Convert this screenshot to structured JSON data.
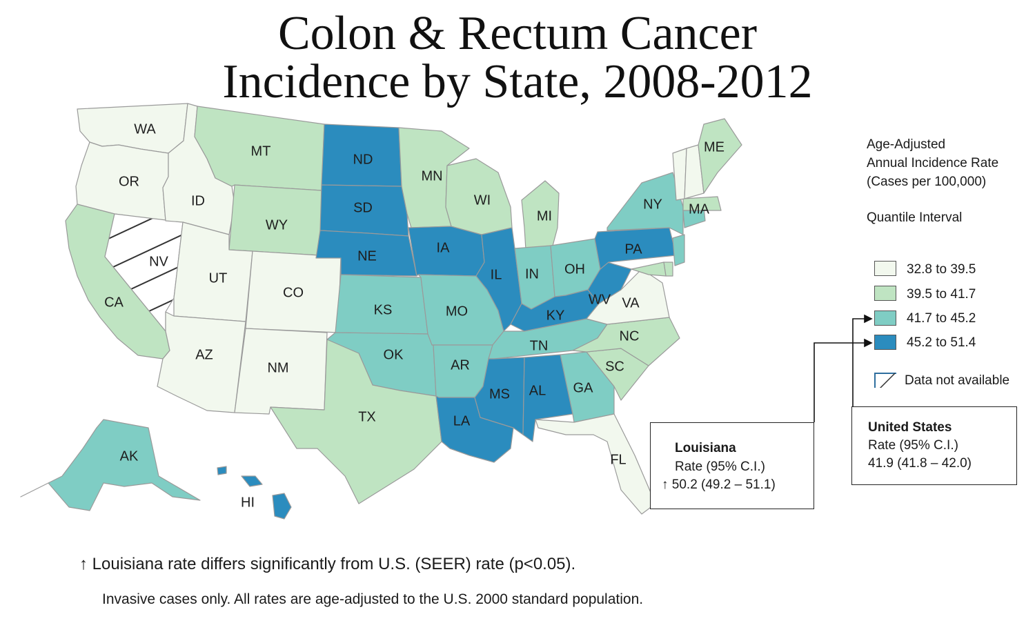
{
  "title": {
    "line1": "Colon & Rectum Cancer",
    "line2": "Incidence by State, 2008-2012"
  },
  "colors": {
    "q1": "#f2f8ee",
    "q2": "#bfe4c2",
    "q3": "#7fcdc4",
    "q4": "#2b8cbe",
    "border": "#9a9a9a"
  },
  "legend": {
    "heading_line1": "Age-Adjusted",
    "heading_line2": "Annual Incidence Rate",
    "heading_line3": "(Cases per 100,000)",
    "interval_heading": "Quantile Interval",
    "items": [
      {
        "label": "32.8 to 39.5",
        "color": "#f2f8ee"
      },
      {
        "label": "39.5 to 41.7",
        "color": "#bfe4c2"
      },
      {
        "label": "41.7 to 45.2",
        "color": "#7fcdc4"
      },
      {
        "label": "45.2 to 51.4",
        "color": "#2b8cbe"
      }
    ],
    "na_label": "Data not available"
  },
  "states": {
    "WA": "q1",
    "OR": "q1",
    "ID": "q1",
    "NV": "na",
    "UT": "q1",
    "AZ": "q1",
    "CO": "q1",
    "NM": "q1",
    "CA": "q2",
    "MT": "q2",
    "WY": "q2",
    "TX": "q2",
    "MN": "q2",
    "WI": "q2",
    "MI": "q2",
    "ND": "q4",
    "SD": "q4",
    "NE": "q4",
    "IA": "q4",
    "IL": "q4",
    "KY": "q4",
    "WV": "q4",
    "PA": "q4",
    "MS": "q4",
    "AL": "q4",
    "LA": "q4",
    "HI": "q4",
    "KS": "q3",
    "OK": "q3",
    "MO": "q3",
    "AR": "q3",
    "IN": "q3",
    "OH": "q3",
    "TN": "q3",
    "GA": "q3",
    "NY": "q3",
    "AK": "q3",
    "NJ": "q3",
    "CT": "q3",
    "VA": "q1",
    "FL": "q1",
    "VT": "q1",
    "NH": "q1",
    "NC": "q2",
    "SC": "q2",
    "ME": "q2",
    "MA": "q2",
    "MD": "q2",
    "DE": "q2"
  },
  "louisiana_box": {
    "name": "Louisiana",
    "rate_label": "Rate (95% C.I.)",
    "arrow": "↑",
    "value": "50.2 (49.2 – 51.1)"
  },
  "us_box": {
    "name": "United States",
    "rate_label": "Rate (95% C.I.)",
    "value": "41.9 (41.8 – 42.0)"
  },
  "footnotes": {
    "line1": "↑ Louisiana rate differs significantly from U.S. (SEER) rate (p<0.05).",
    "line2": "Invasive cases only. All rates are age-adjusted to the U.S. 2000 standard population."
  }
}
